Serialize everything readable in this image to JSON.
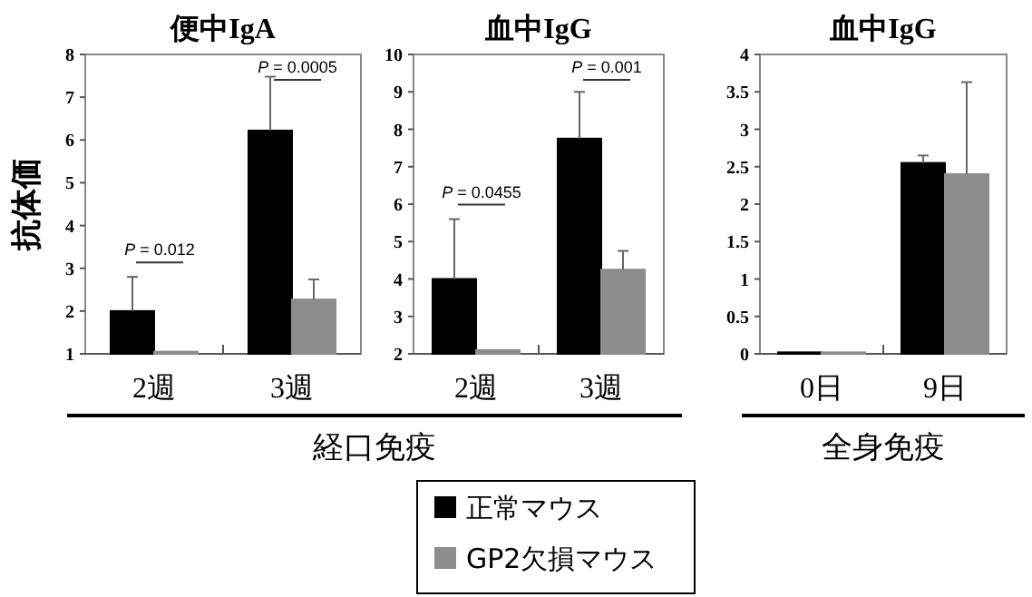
{
  "chart_data": [
    {
      "type": "bar",
      "title": "便中IgA",
      "ylabel": "抗体価",
      "categories": [
        "2週",
        "3週"
      ],
      "ylim": [
        1,
        8
      ],
      "yticks": [
        1,
        2,
        3,
        4,
        5,
        6,
        7,
        8
      ],
      "legend": "bottom",
      "series": [
        {
          "name": "正常マウス",
          "color": "#000000",
          "values": [
            2.0,
            6.22
          ],
          "errors": [
            0.8,
            1.26
          ]
        },
        {
          "name": "GP2欠損マウス",
          "color": "#8c8c8c",
          "values": [
            1.05,
            2.27
          ],
          "errors": [
            null,
            0.47
          ]
        }
      ],
      "annotations": [
        "*P* = 0.012",
        "*P* = 0.0005",
        "経口免疫"
      ]
    },
    {
      "type": "bar",
      "title": "血中IgG",
      "categories": [
        "2週",
        "3週"
      ],
      "ylim": [
        2,
        10
      ],
      "yticks": [
        2,
        3,
        4,
        5,
        6,
        7,
        8,
        9,
        10
      ],
      "series": [
        {
          "color": "#000000",
          "values": [
            4.0,
            7.75
          ],
          "errors": [
            1.6,
            1.25
          ]
        },
        {
          "color": "#8c8c8c",
          "values": [
            2.1,
            4.25
          ],
          "errors": [
            null,
            0.5
          ]
        }
      ],
      "annotations": [
        "*P* = 0.0455",
        "*P* = 0.001"
      ]
    },
    {
      "type": "bar",
      "title": "血中IgG",
      "categories": [
        "0日",
        "9日"
      ],
      "ylim": [
        0,
        4
      ],
      "yticks": [
        0,
        0.5,
        1,
        1.5,
        2,
        2.5,
        3,
        3.5,
        4
      ],
      "series": [
        {
          "color": "#000000",
          "values": [
            0.02,
            2.55
          ],
          "errors": [
            null,
            0.1
          ]
        },
        {
          "color": "#8c8c8c",
          "values": [
            0.02,
            2.4
          ],
          "errors": [
            null,
            1.23
          ]
        }
      ],
      "annotations": [
        "全身免疫"
      ]
    }
  ]
}
